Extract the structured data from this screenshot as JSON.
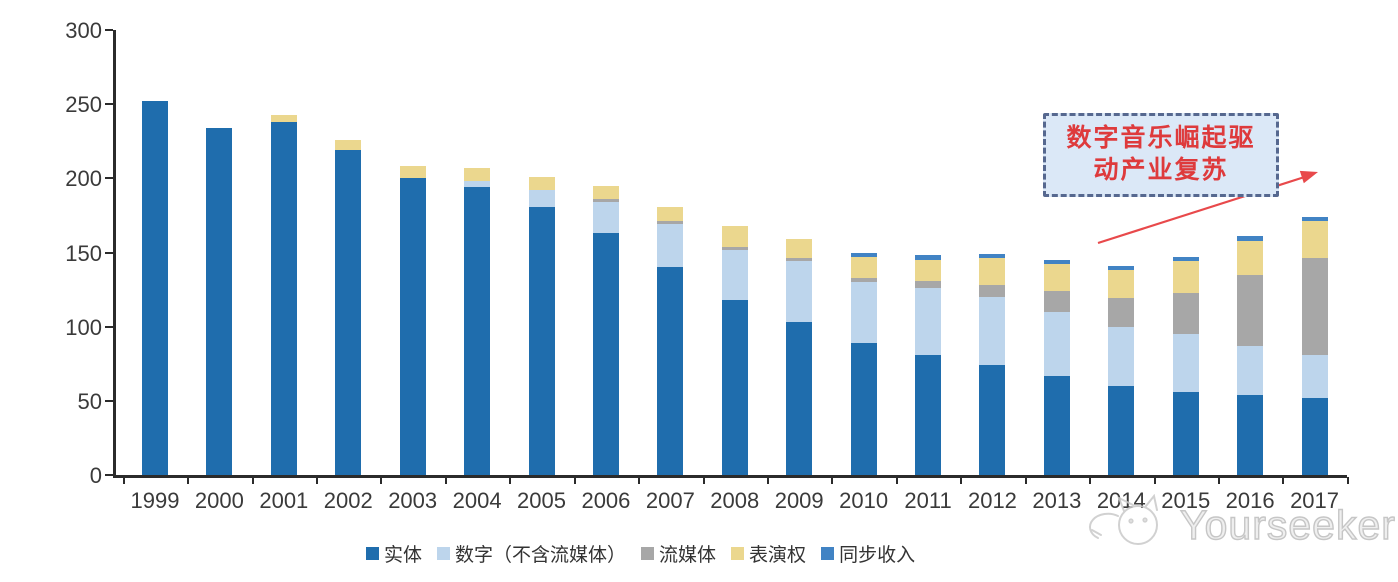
{
  "chart_data": {
    "type": "bar",
    "stacked": true,
    "categories": [
      "1999",
      "2000",
      "2001",
      "2002",
      "2003",
      "2004",
      "2005",
      "2006",
      "2007",
      "2008",
      "2009",
      "2010",
      "2011",
      "2012",
      "2013",
      "2014",
      "2015",
      "2016",
      "2017"
    ],
    "series": [
      {
        "name": "实体",
        "color": "#1F6DAD",
        "values": [
          252,
          234,
          238,
          219,
          200,
          194,
          181,
          163,
          140,
          118,
          103,
          89,
          81,
          74,
          67,
          60,
          56,
          54,
          52
        ]
      },
      {
        "name": "数字（不含流媒体）",
        "color": "#BDD5EC",
        "values": [
          0,
          0,
          0,
          0,
          0,
          4,
          11,
          21,
          29,
          34,
          41,
          41,
          45,
          46,
          43,
          40,
          39,
          33,
          29
        ]
      },
      {
        "name": "流媒体",
        "color": "#A7A7A7",
        "values": [
          0,
          0,
          0,
          0,
          0,
          0,
          0,
          2,
          2,
          2,
          2,
          3,
          5,
          8,
          14,
          19,
          28,
          48,
          65
        ]
      },
      {
        "name": "表演权",
        "color": "#EBD78E",
        "values": [
          0,
          0,
          5,
          7,
          8,
          9,
          9,
          9,
          10,
          14,
          13,
          14,
          14,
          18,
          18,
          19,
          21,
          23,
          25
        ]
      },
      {
        "name": "同步收入",
        "color": "#4183C4",
        "values": [
          0,
          0,
          0,
          0,
          0,
          0,
          0,
          0,
          0,
          0,
          0,
          3,
          3,
          3,
          3,
          3,
          3,
          3,
          3
        ]
      }
    ],
    "ylim": [
      0,
      300
    ],
    "yticks": [
      0,
      50,
      100,
      150,
      200,
      250,
      300
    ],
    "xlabel": "",
    "ylabel": "",
    "grid": false,
    "legend_position": "bottom"
  },
  "annotation": {
    "line1": "数字音乐崛起驱",
    "line2": "动产业复苏",
    "text_color": "#DE3A3C",
    "box_fill": "#DBE8F7",
    "box_border": "#56688F",
    "arrow_color": "#E8494B"
  },
  "watermark": {
    "text": "Yourseeker",
    "logo": "yourseeker-cat-logo",
    "color": "#C6C6C6"
  },
  "axis_color": "#2B2B2B"
}
